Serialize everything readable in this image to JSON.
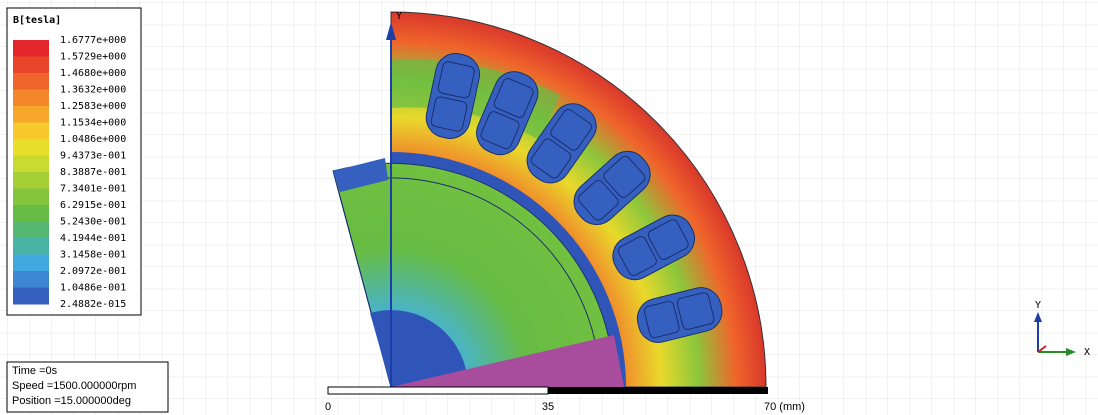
{
  "legend": {
    "title": "B[tesla]",
    "labels": [
      "1.6777e+000",
      "1.5729e+000",
      "1.4680e+000",
      "1.3632e+000",
      "1.2583e+000",
      "1.1534e+000",
      "1.0486e+000",
      "9.4373e-001",
      "8.3887e-001",
      "7.3401e-001",
      "6.2915e-001",
      "5.2430e-001",
      "4.1944e-001",
      "3.1458e-001",
      "2.0972e-001",
      "1.0486e-001",
      "2.4882e-015"
    ],
    "colors": [
      "#e3262b",
      "#ea452b",
      "#f0652b",
      "#f4862b",
      "#f7a82b",
      "#f7c92b",
      "#e9df2b",
      "#c9da30",
      "#a6cf36",
      "#84c53d",
      "#66bc44",
      "#55b872",
      "#49b3a6",
      "#42a9e0",
      "#3d86d3",
      "#3560c0"
    ]
  },
  "info": {
    "lines": [
      "Time    =0s",
      "Speed    =1500.000000rpm",
      "Position =15.000000deg"
    ]
  },
  "scale": {
    "labels": [
      "0",
      "35",
      "70 (mm)"
    ]
  },
  "axes": {
    "main_y": "Y",
    "triad_y": "Y",
    "triad_x": "X"
  }
}
